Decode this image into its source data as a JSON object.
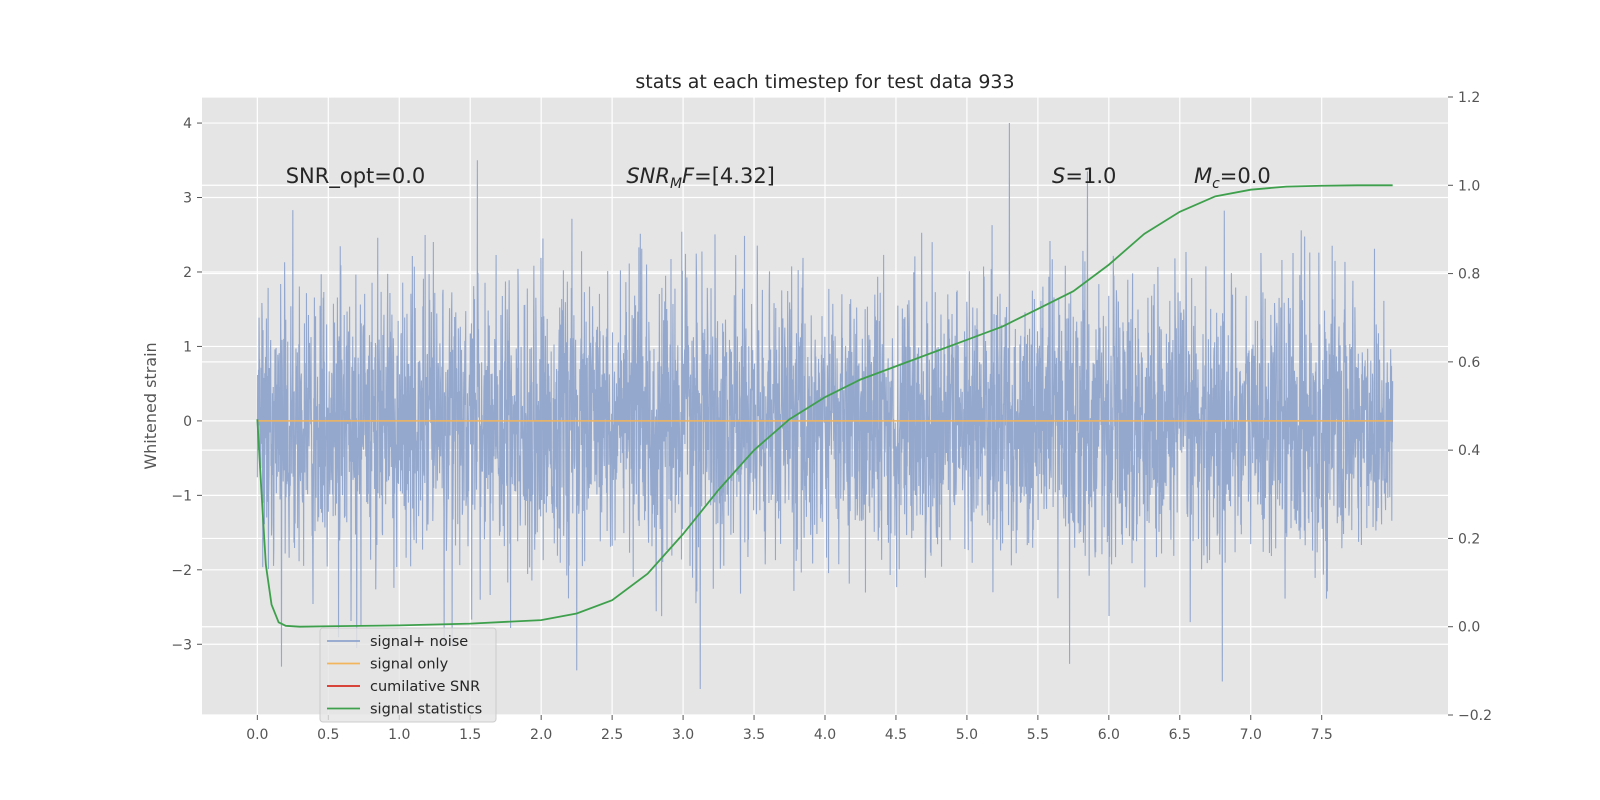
{
  "chart_data": {
    "type": "line",
    "title": "stats at each timestep for test data 933",
    "ylabel": "Whitened strain",
    "xlim": [
      -0.39,
      8.39
    ],
    "ylim_left": [
      -3.95,
      4.35
    ],
    "ylim_right": [
      -0.2,
      1.2
    ],
    "x_ticks": [
      0.0,
      0.5,
      1.0,
      1.5,
      2.0,
      2.5,
      3.0,
      3.5,
      4.0,
      4.5,
      5.0,
      5.5,
      6.0,
      6.5,
      7.0,
      7.5
    ],
    "x_tick_labels": [
      "0.0",
      "0.5",
      "1.0",
      "1.5",
      "2.0",
      "2.5",
      "3.0",
      "3.5",
      "4.0",
      "4.5",
      "5.0",
      "5.5",
      "6.0",
      "6.5",
      "7.0",
      "7.5"
    ],
    "y_left_ticks": [
      -3,
      -2,
      -1,
      0,
      1,
      2,
      3,
      4
    ],
    "y_left_tick_labels": [
      "−3",
      "−2",
      "−1",
      "0",
      "1",
      "2",
      "3",
      "4"
    ],
    "y_right_ticks": [
      -0.2,
      0.0,
      0.2,
      0.4,
      0.6,
      0.8,
      1.0,
      1.2
    ],
    "y_right_tick_labels": [
      "−0.2",
      "0.0",
      "0.2",
      "0.4",
      "0.6",
      "0.8",
      "1.0",
      "1.2"
    ],
    "grid": true,
    "legend_position": "bottom-left",
    "annotations": [
      {
        "text": "SNR_opt=0.0",
        "x": 0.2,
        "y": 3.25
      },
      {
        "text": "SNR_MF=[4.32]",
        "x": 2.6,
        "y": 3.25
      },
      {
        "text": "S=1.0",
        "x": 5.6,
        "y": 3.25
      },
      {
        "text": "M_c=0.0",
        "x": 6.6,
        "y": 3.25
      }
    ],
    "series": [
      {
        "name": "signal+ noise",
        "axis": "left",
        "color": "#8fa4cc",
        "style": "noise",
        "x_range": [
          0.0,
          8.0
        ],
        "approx_std": 0.9,
        "notable_peaks": [
          {
            "x": 5.3,
            "y": 4.0
          },
          {
            "x": 1.55,
            "y": 3.5
          },
          {
            "x": 5.85,
            "y": 3.35
          },
          {
            "x": 3.12,
            "y": -3.6
          },
          {
            "x": 6.8,
            "y": -3.5
          },
          {
            "x": 2.25,
            "y": -3.35
          },
          {
            "x": 0.17,
            "y": -3.3
          }
        ]
      },
      {
        "name": "signal only",
        "axis": "left",
        "color": "#f2b55c",
        "x": [
          0.0,
          8.0
        ],
        "y": [
          0.0,
          0.0
        ]
      },
      {
        "name": "cumilative SNR",
        "axis": "right",
        "color": "#d62d20",
        "x": [],
        "y": []
      },
      {
        "name": "signal statistics",
        "axis": "right",
        "color": "#3ea04c",
        "x": [
          0.0,
          0.03,
          0.06,
          0.1,
          0.15,
          0.2,
          0.3,
          0.5,
          1.0,
          1.5,
          2.0,
          2.25,
          2.5,
          2.75,
          3.0,
          3.25,
          3.5,
          3.75,
          4.0,
          4.25,
          4.5,
          4.75,
          5.0,
          5.25,
          5.5,
          5.75,
          6.0,
          6.25,
          6.5,
          6.75,
          7.0,
          7.25,
          7.5,
          7.75,
          8.0
        ],
        "y": [
          0.47,
          0.3,
          0.14,
          0.05,
          0.01,
          0.002,
          0.0,
          0.001,
          0.003,
          0.007,
          0.015,
          0.03,
          0.06,
          0.12,
          0.21,
          0.31,
          0.4,
          0.47,
          0.52,
          0.56,
          0.59,
          0.62,
          0.65,
          0.68,
          0.72,
          0.76,
          0.82,
          0.89,
          0.94,
          0.975,
          0.99,
          0.997,
          0.999,
          1.0,
          1.0
        ]
      }
    ]
  }
}
